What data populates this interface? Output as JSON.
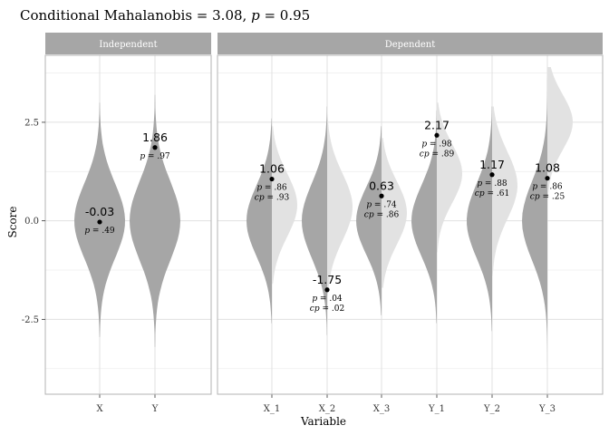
{
  "chart_data": {
    "type": "violin",
    "title_prefix": "Conditional Mahalanobis = 3.08, ",
    "title_p": "p",
    "title_suffix": " = 0.95",
    "xlabel": "Variable",
    "ylabel": "Score",
    "ylim": [
      -4.4,
      4.2
    ],
    "yticks": [
      -2.5,
      0.0,
      2.5
    ],
    "ytick_labels": [
      "-2.5",
      "0.0",
      "2.5"
    ],
    "grid": true,
    "colors": {
      "strip": "#a6a6a6",
      "violin_dark": "#a6a6a6",
      "violin_light": "#e2e2e2",
      "panel_border": "#b3b3b3",
      "grid": "#e0e0e0"
    },
    "panels": [
      {
        "name": "Independent",
        "variables": [
          {
            "label": "X",
            "value": -0.03,
            "value_label": "-0.03",
            "p": ".49",
            "cp": null,
            "type": "full",
            "range": [
              -2.95,
              3.0
            ],
            "sigma": 0.95
          },
          {
            "label": "Y",
            "value": 1.86,
            "value_label": "1.86",
            "p": ".97",
            "cp": null,
            "type": "full",
            "range": [
              -3.2,
              3.2
            ],
            "sigma": 1.0
          }
        ]
      },
      {
        "name": "Dependent",
        "variables": [
          {
            "label": "X_1",
            "value": 1.06,
            "value_label": "1.06",
            "p": ".86",
            "cp": ".93",
            "type": "split",
            "range": [
              -2.6,
              2.6
            ],
            "sigma": 0.9,
            "cond_mean": 0.4,
            "cond_sigma": 0.8,
            "cond_range": [
              -1.6,
              2.4
            ]
          },
          {
            "label": "X_2",
            "value": -1.75,
            "value_label": "-1.75",
            "p": ".04",
            "cp": ".02",
            "type": "split",
            "range": [
              -2.9,
              2.9
            ],
            "sigma": 0.95,
            "cond_mean": 0.35,
            "cond_sigma": 0.85,
            "cond_range": [
              -1.9,
              2.7
            ]
          },
          {
            "label": "X_3",
            "value": 0.63,
            "value_label": "0.63",
            "p": ".74",
            "cp": ".86",
            "type": "split",
            "range": [
              -2.4,
              2.4
            ],
            "sigma": 0.85,
            "cond_mean": 0.2,
            "cond_sigma": 0.8,
            "cond_range": [
              -1.7,
              2.1
            ]
          },
          {
            "label": "Y_1",
            "value": 2.17,
            "value_label": "2.17",
            "p": ".98",
            "cp": ".89",
            "type": "split",
            "range": [
              -2.6,
              2.8
            ],
            "sigma": 0.9,
            "cond_mean": 1.2,
            "cond_sigma": 0.75,
            "cond_range": [
              -0.8,
              3.0
            ]
          },
          {
            "label": "Y_2",
            "value": 1.17,
            "value_label": "1.17",
            "p": ".88",
            "cp": ".61",
            "type": "split",
            "range": [
              -2.8,
              2.9
            ],
            "sigma": 0.95,
            "cond_mean": 0.9,
            "cond_sigma": 0.85,
            "cond_range": [
              -1.4,
              2.9
            ]
          },
          {
            "label": "Y_3",
            "value": 1.08,
            "value_label": "1.08",
            "p": ".86",
            "cp": ".25",
            "type": "split",
            "range": [
              -3.9,
              3.9
            ],
            "sigma": 1.0,
            "cond_mean": 2.5,
            "cond_sigma": 0.7,
            "cond_range": [
              0.5,
              3.9
            ]
          }
        ]
      }
    ]
  }
}
